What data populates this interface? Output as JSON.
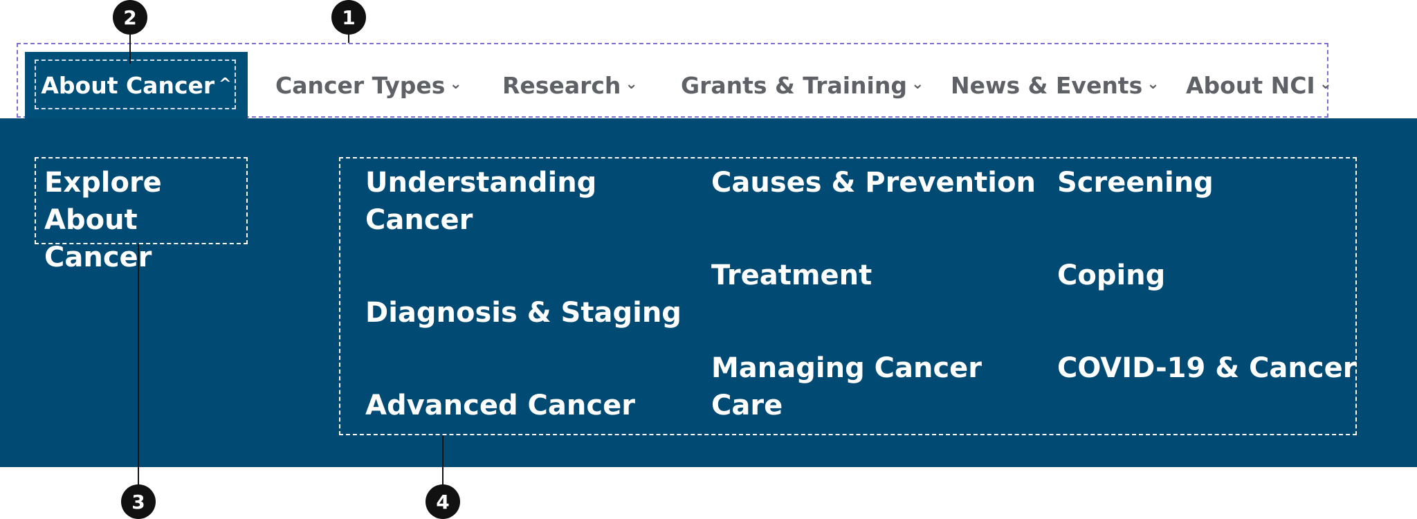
{
  "nav": {
    "items": [
      {
        "label": "About Cancer",
        "chevron": "^",
        "active": true
      },
      {
        "label": "Cancer Types",
        "chevron": "⌄"
      },
      {
        "label": "Research",
        "chevron": "⌄"
      },
      {
        "label": "Grants & Training",
        "chevron": "⌄"
      },
      {
        "label": "News & Events",
        "chevron": "⌄"
      },
      {
        "label": "About NCI",
        "chevron": "⌄"
      }
    ]
  },
  "panel": {
    "explore_line1": "Explore About",
    "explore_line2": "Cancer",
    "links": [
      {
        "line1": "Understanding",
        "line2": "Cancer"
      },
      {
        "line1": "Causes & Prevention"
      },
      {
        "line1": "Screening"
      },
      {
        "line1": "Diagnosis & Staging"
      },
      {
        "line1": "Treatment"
      },
      {
        "line1": "Coping"
      },
      {
        "line1": "Advanced Cancer"
      },
      {
        "line1": "Managing Cancer",
        "line2": "Care"
      },
      {
        "line1": "COVID-19 & Cancer"
      }
    ]
  },
  "callouts": [
    "1",
    "2",
    "3",
    "4"
  ],
  "colors": {
    "panel_bg": "#004a73",
    "active_bg": "#004f78",
    "nav_text": "#5e6266",
    "outline": "#7b6fd1"
  }
}
